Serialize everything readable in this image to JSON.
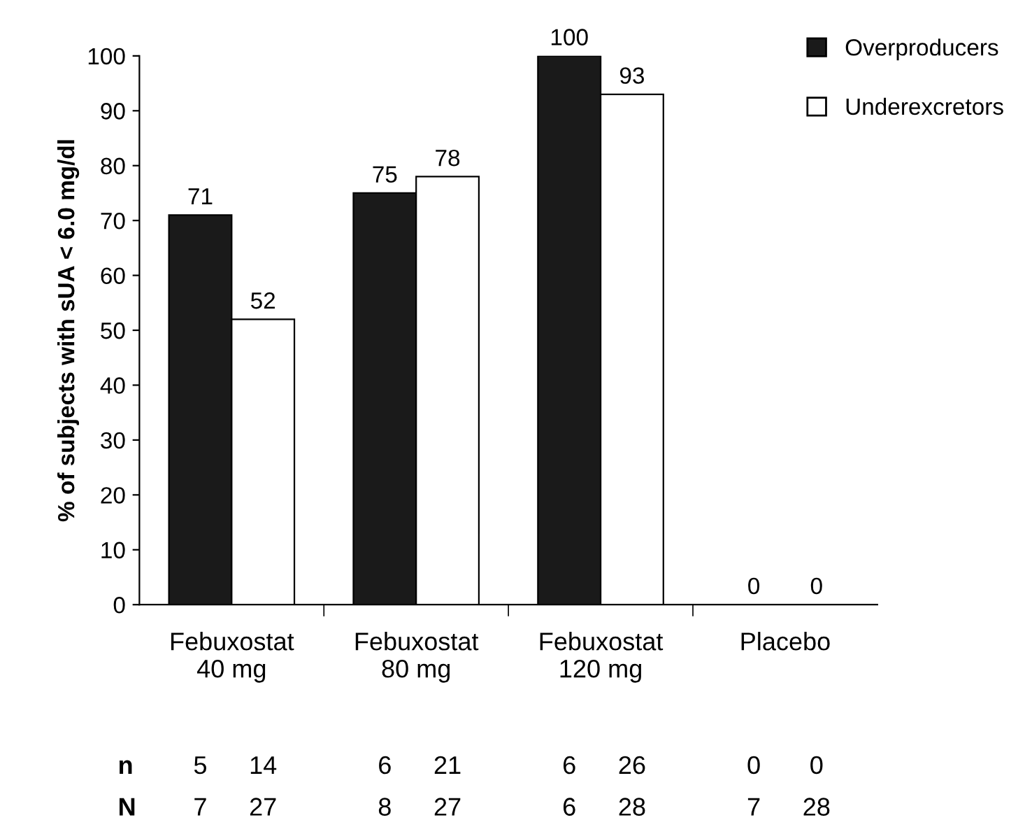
{
  "chart_data": {
    "type": "bar",
    "ylabel": "% of subjects with sUA < 6.0 mg/dl",
    "categories": [
      "Febuxostat\n40 mg",
      "Febuxostat\n80 mg",
      "Febuxostat\n120 mg",
      "Placebo"
    ],
    "series": [
      {
        "name": "Overproducers",
        "color": "#1a1a1a",
        "values": [
          71,
          75,
          100,
          0
        ]
      },
      {
        "name": "Underexcretors",
        "color": "#ffffff",
        "values": [
          52,
          78,
          93,
          0
        ]
      }
    ],
    "ylim": [
      0,
      100
    ],
    "yticks": [
      0,
      10,
      20,
      30,
      40,
      50,
      60,
      70,
      80,
      90,
      100
    ],
    "data_labels": true,
    "legend": "top right",
    "grid": false,
    "annotations": [
      "n",
      "5",
      "14",
      "6",
      "21",
      "6",
      "26",
      "0",
      "0",
      "N",
      "7",
      "27",
      "8",
      "27",
      "6",
      "28",
      "7",
      "28"
    ]
  }
}
